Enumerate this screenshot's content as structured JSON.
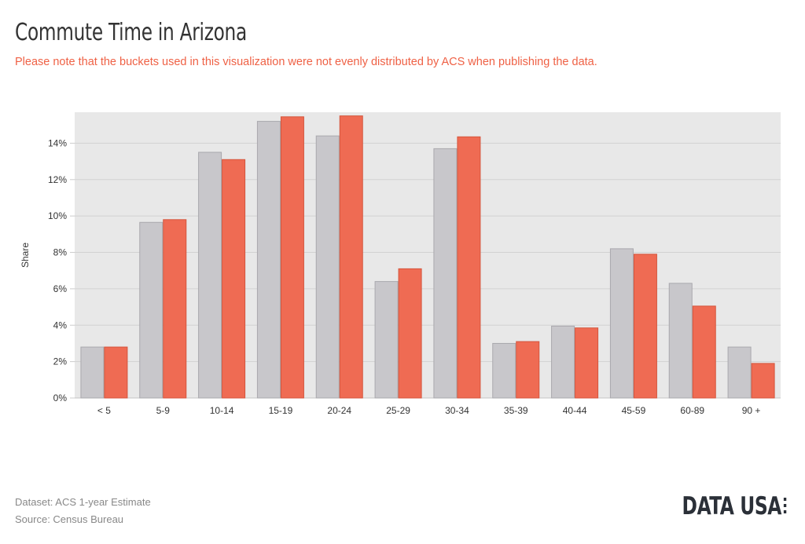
{
  "header": {
    "title": "Commute Time in Arizona",
    "subtitle": "Please note that the buckets used in this visualization were not evenly distributed by ACS when publishing the data."
  },
  "chart_data": {
    "type": "bar",
    "categories": [
      "< 5",
      "5-9",
      "10-14",
      "15-19",
      "20-24",
      "25-29",
      "30-34",
      "35-39",
      "40-44",
      "45-59",
      "60-89",
      "90 +"
    ],
    "series": [
      {
        "color": "#c8c7cb",
        "values": [
          2.8,
          9.65,
          13.5,
          15.2,
          14.4,
          6.4,
          13.7,
          3.0,
          3.95,
          8.2,
          6.3,
          2.8
        ]
      },
      {
        "color": "#ef6b53",
        "values": [
          2.8,
          9.8,
          13.1,
          15.45,
          15.5,
          7.1,
          14.35,
          3.1,
          3.85,
          7.9,
          5.05,
          1.9
        ]
      }
    ],
    "title": "",
    "xlabel": "",
    "ylabel": "Share",
    "ylim": [
      0,
      15.7
    ],
    "yticks": [
      0,
      2,
      4,
      6,
      8,
      10,
      12,
      14
    ],
    "ytick_suffix": "%",
    "grid": true,
    "background": "#e8e8e8"
  },
  "footer": {
    "dataset": "Dataset: ACS 1-year Estimate",
    "source": "Source: Census Bureau"
  },
  "logo": {
    "text": "DATA USA"
  }
}
